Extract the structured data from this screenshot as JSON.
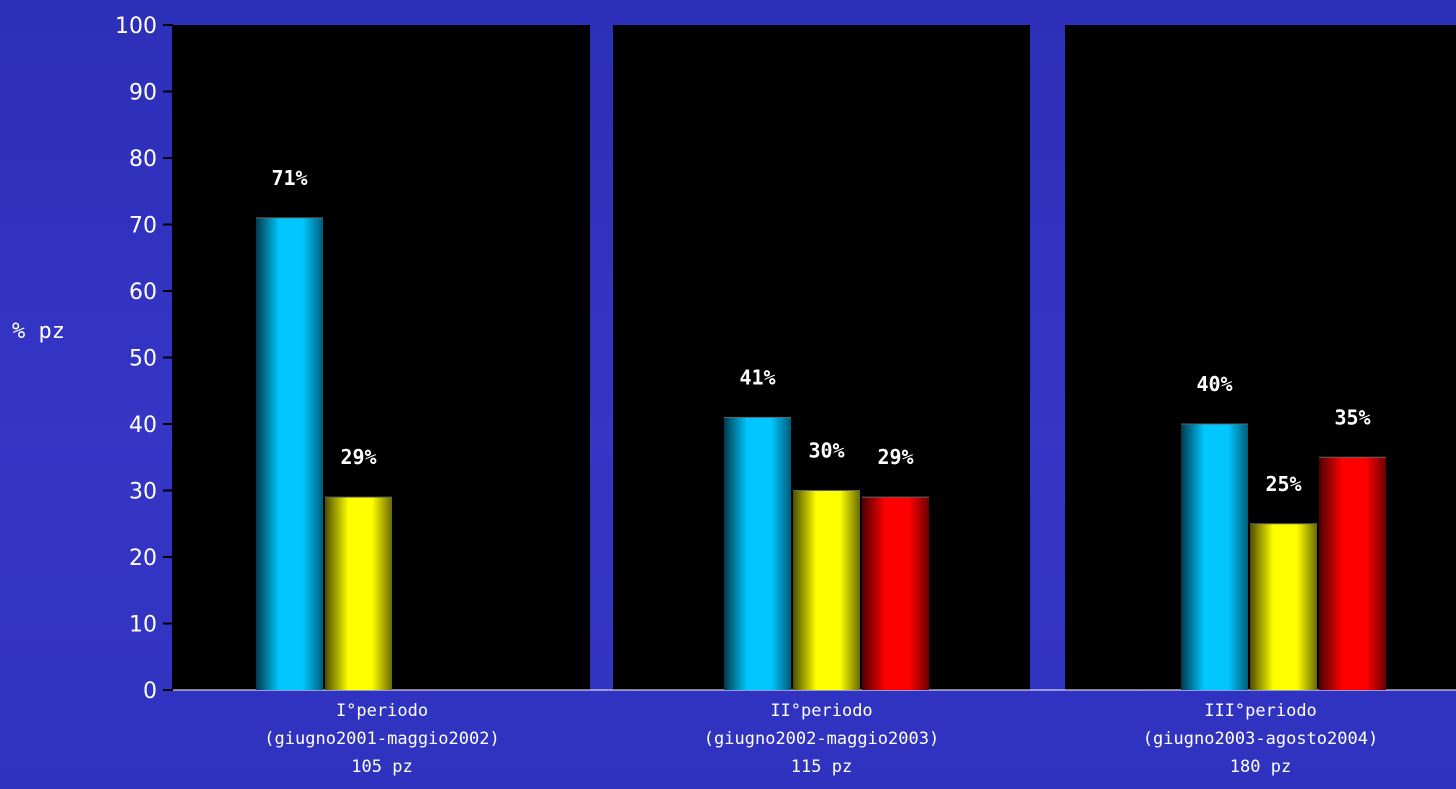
{
  "chart_data": {
    "type": "bar",
    "ylabel": "% pz",
    "ylim": [
      0,
      100
    ],
    "yticks": [
      0,
      10,
      20,
      30,
      40,
      50,
      60,
      70,
      80,
      90,
      100
    ],
    "grid": false,
    "legend": "none",
    "colors": {
      "background": "#3333c4",
      "panel": "#000000",
      "blue": "#00c8ff",
      "yellow": "#ffff00",
      "red": "#ff0000"
    },
    "groups": [
      {
        "label_lines": [
          "I°periodo",
          "(giugno2001-maggio2002)",
          "105 pz"
        ],
        "bars": [
          {
            "value": 71,
            "label": "71%",
            "color": "blue"
          },
          {
            "value": 29,
            "label": "29%",
            "color": "yellow"
          }
        ]
      },
      {
        "label_lines": [
          "II°periodo",
          "(giugno2002-maggio2003)",
          "115 pz"
        ],
        "bars": [
          {
            "value": 41,
            "label": "41%",
            "color": "blue"
          },
          {
            "value": 30,
            "label": "30%",
            "color": "yellow"
          },
          {
            "value": 29,
            "label": "29%",
            "color": "red"
          }
        ]
      },
      {
        "label_lines": [
          "III°periodo",
          "(giugno2003-agosto2004)",
          "180 pz"
        ],
        "bars": [
          {
            "value": 40,
            "label": "40%",
            "color": "blue"
          },
          {
            "value": 25,
            "label": "25%",
            "color": "yellow"
          },
          {
            "value": 35,
            "label": "35%",
            "color": "red"
          }
        ]
      }
    ]
  }
}
